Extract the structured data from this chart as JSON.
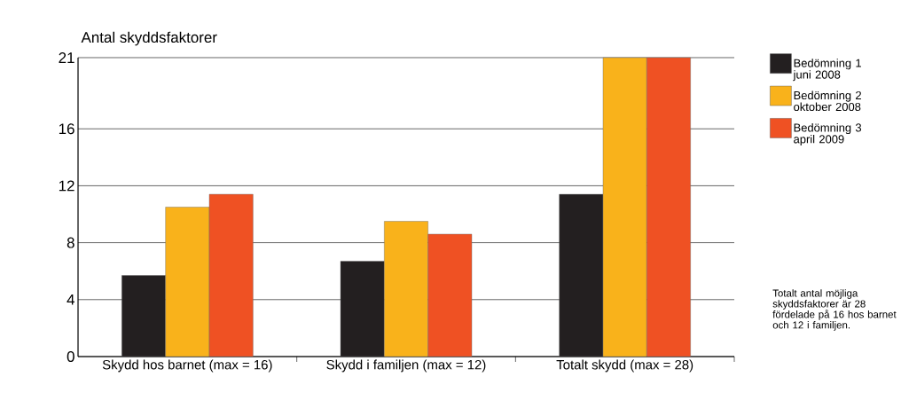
{
  "chart_data": {
    "type": "bar",
    "ylabel": "Antal skyddsfaktorer",
    "categories": [
      "Skydd hos barnet (max = 16)",
      "Skydd i familjen (max = 12)",
      "Totalt skydd (max = 28)"
    ],
    "series": [
      {
        "name": "Bedömning 1 juni 2008",
        "color": "#231f20",
        "values": [
          5.7,
          6.7,
          11.4
        ]
      },
      {
        "name": "Bedömning 2 oktober 2008",
        "color": "#f9b21b",
        "values": [
          10.5,
          9.5,
          21
        ]
      },
      {
        "name": "Bedömning 3 april 2009",
        "color": "#ef5123",
        "values": [
          11.4,
          8.6,
          21
        ]
      }
    ],
    "ylim": [
      0,
      21
    ],
    "yticks": [
      0,
      4,
      8,
      12,
      16,
      21
    ],
    "grid": "y",
    "legend": "top right",
    "annotations": [
      "Totalt antal möjliga skyddsfaktorer är 28 fördelade på 16 hos barnet och 12 i familjen."
    ]
  }
}
